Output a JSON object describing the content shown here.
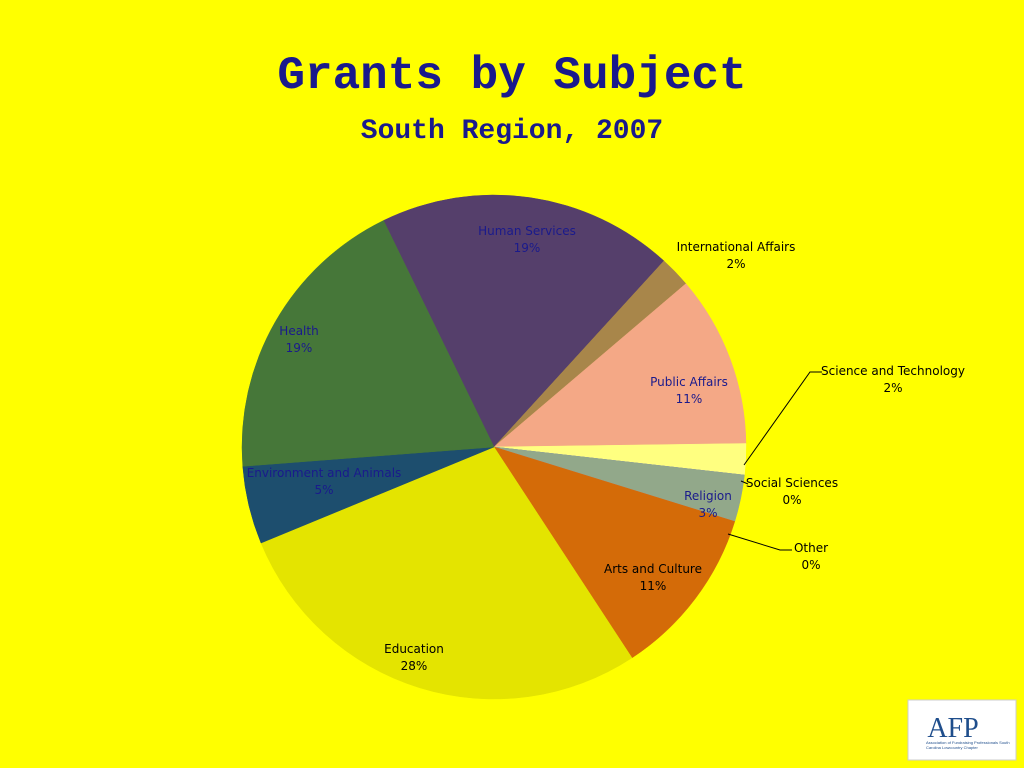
{
  "chart_data": {
    "type": "pie",
    "title": "Grants by Subject",
    "subtitle": "South Region, 2007",
    "categories": [
      "Human Services",
      "International Affairs",
      "Public Affairs",
      "Science and Technology",
      "Social Sciences",
      "Religion",
      "Other",
      "Arts and Culture",
      "Education",
      "Environment and Animals",
      "Health"
    ],
    "values": [
      19,
      2,
      11,
      2,
      0,
      3,
      0,
      11,
      28,
      5,
      19
    ],
    "value_labels": [
      "19%",
      "2%",
      "11%",
      "2%",
      "0%",
      "3%",
      "0%",
      "11%",
      "28%",
      "5%",
      "19%"
    ],
    "colors": [
      "#553f6b",
      "#a8864a",
      "#f4a886",
      "#ffff80",
      "#8080c0",
      "#92a88a",
      "#c08080",
      "#d46b08",
      "#e4e400",
      "#1d4e6e",
      "#467739"
    ]
  },
  "logo": {
    "text": "AFP",
    "caption": "Association of Fundraising Professionals South Carolina Lowcountry Chapter"
  }
}
